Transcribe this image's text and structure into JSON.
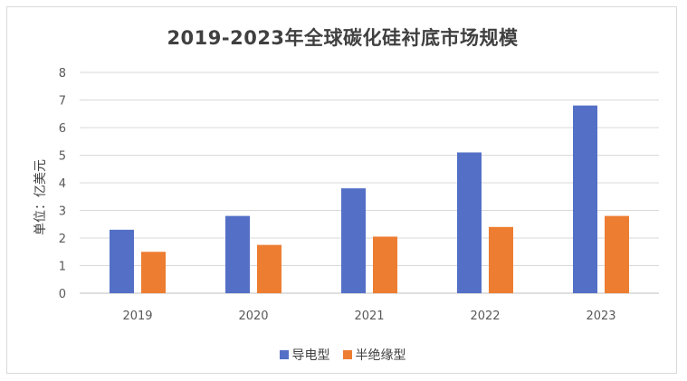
{
  "chart_data": {
    "type": "bar",
    "title": "2019-2023年全球碳化硅衬底市场规模",
    "xlabel": "",
    "ylabel": "单位：亿美元",
    "categories": [
      "2019",
      "2020",
      "2021",
      "2022",
      "2023"
    ],
    "ylim": [
      0,
      8
    ],
    "yticks": [
      0,
      1,
      2,
      3,
      4,
      5,
      6,
      7,
      8
    ],
    "grid": true,
    "legend_position": "bottom",
    "series": [
      {
        "name": "导电型",
        "color": "#5470C6",
        "values": [
          2.3,
          2.8,
          3.8,
          5.1,
          6.8
        ]
      },
      {
        "name": "半绝缘型",
        "color": "#ED7D31",
        "values": [
          1.5,
          1.75,
          2.05,
          2.4,
          2.8
        ]
      }
    ]
  }
}
